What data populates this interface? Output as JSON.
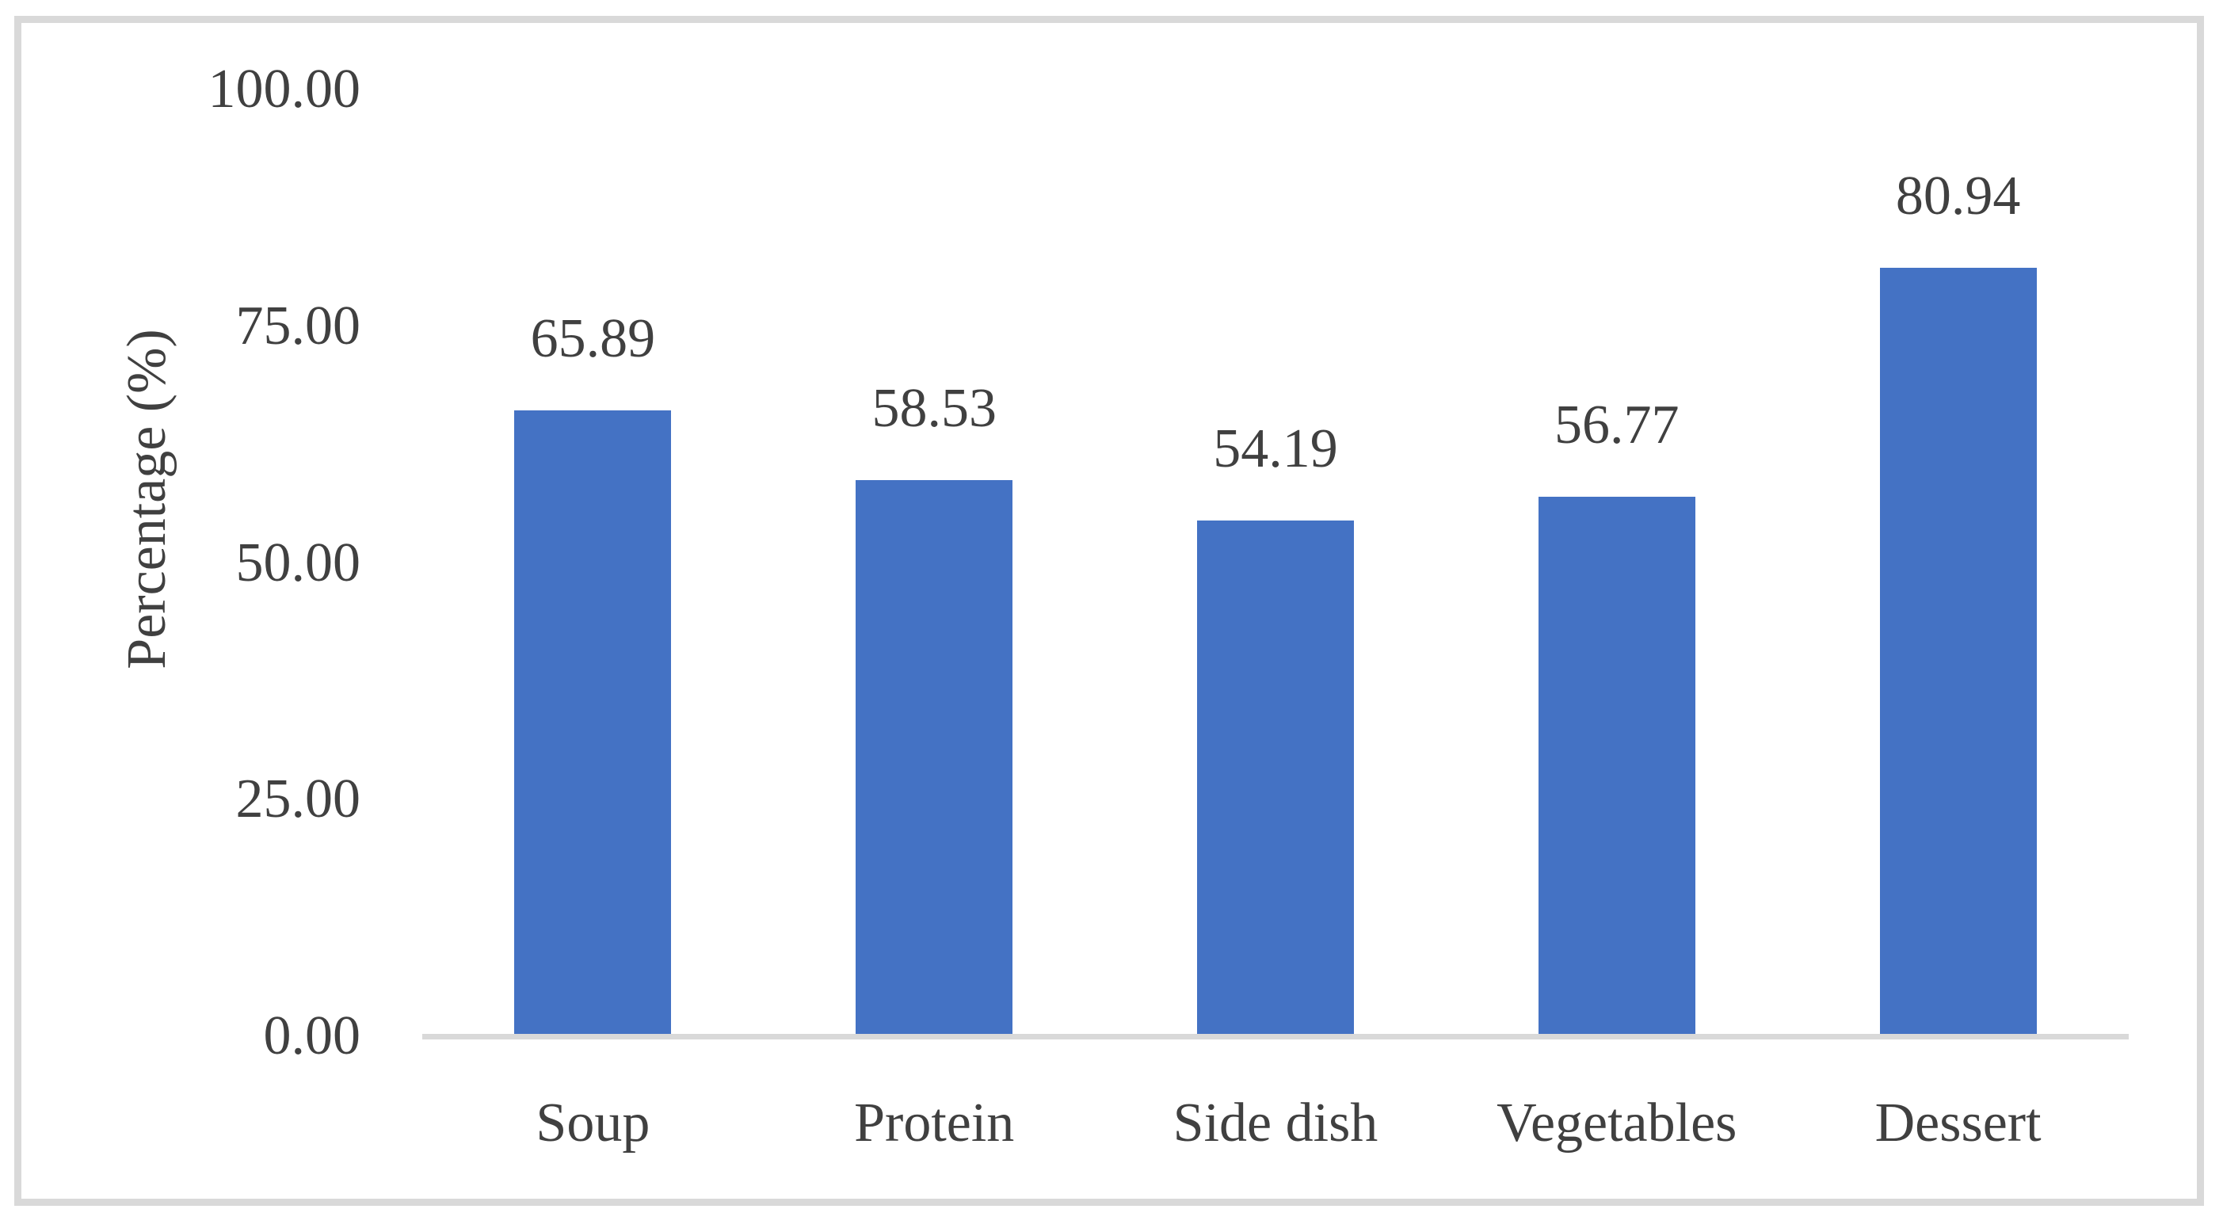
{
  "chart_data": {
    "type": "bar",
    "categories": [
      "Soup",
      "Protein",
      "Side dish",
      "Vegetables",
      "Dessert"
    ],
    "values": [
      65.89,
      58.53,
      54.19,
      56.77,
      80.94
    ],
    "data_labels": [
      "65.89",
      "58.53",
      "54.19",
      "56.77",
      "80.94"
    ],
    "ylabel": "Percentage (%)",
    "xlabel": "",
    "ylim": [
      0,
      100
    ],
    "ytick_labels": [
      "0.00",
      "25.00",
      "50.00",
      "75.00",
      "100.00"
    ],
    "ytick_values": [
      0,
      25,
      50,
      75,
      100
    ],
    "grid": false,
    "legend": false,
    "bar_color": "#4472C4",
    "axis_line_color": "#D9D9D9",
    "frame_border_color": "#D9D9D9",
    "text_color": "#404040"
  }
}
